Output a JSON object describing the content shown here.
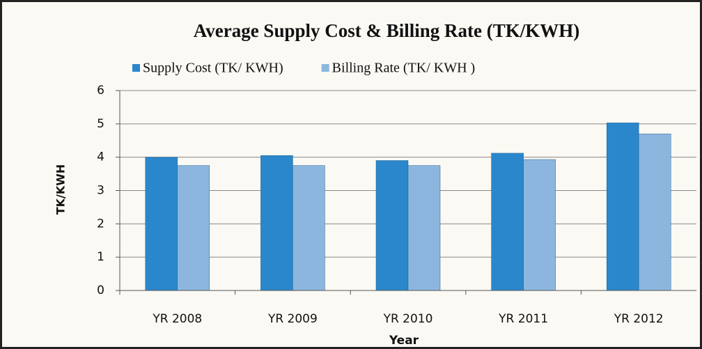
{
  "chart_data": {
    "type": "bar",
    "title": "Average Supply Cost & Billing Rate (TK/KWH)",
    "x_label": "Year",
    "y_label": "TK/KWH",
    "categories": [
      "YR 2008",
      "YR 2009",
      "YR 2010",
      "YR 2011",
      "YR 2012"
    ],
    "series": [
      {
        "name": "Supply Cost (TK/ KWH)",
        "color": "#2b87cc",
        "values": [
          4.0,
          4.05,
          3.9,
          4.12,
          5.03
        ]
      },
      {
        "name": "Billing Rate (TK/ KWH )",
        "color": "#8db6df",
        "values": [
          3.75,
          3.75,
          3.75,
          3.93,
          4.7
        ]
      }
    ],
    "ylim": [
      0,
      6
    ],
    "yticks": [
      0,
      1,
      2,
      3,
      4,
      5,
      6
    ],
    "grid": true,
    "legend": "top"
  }
}
